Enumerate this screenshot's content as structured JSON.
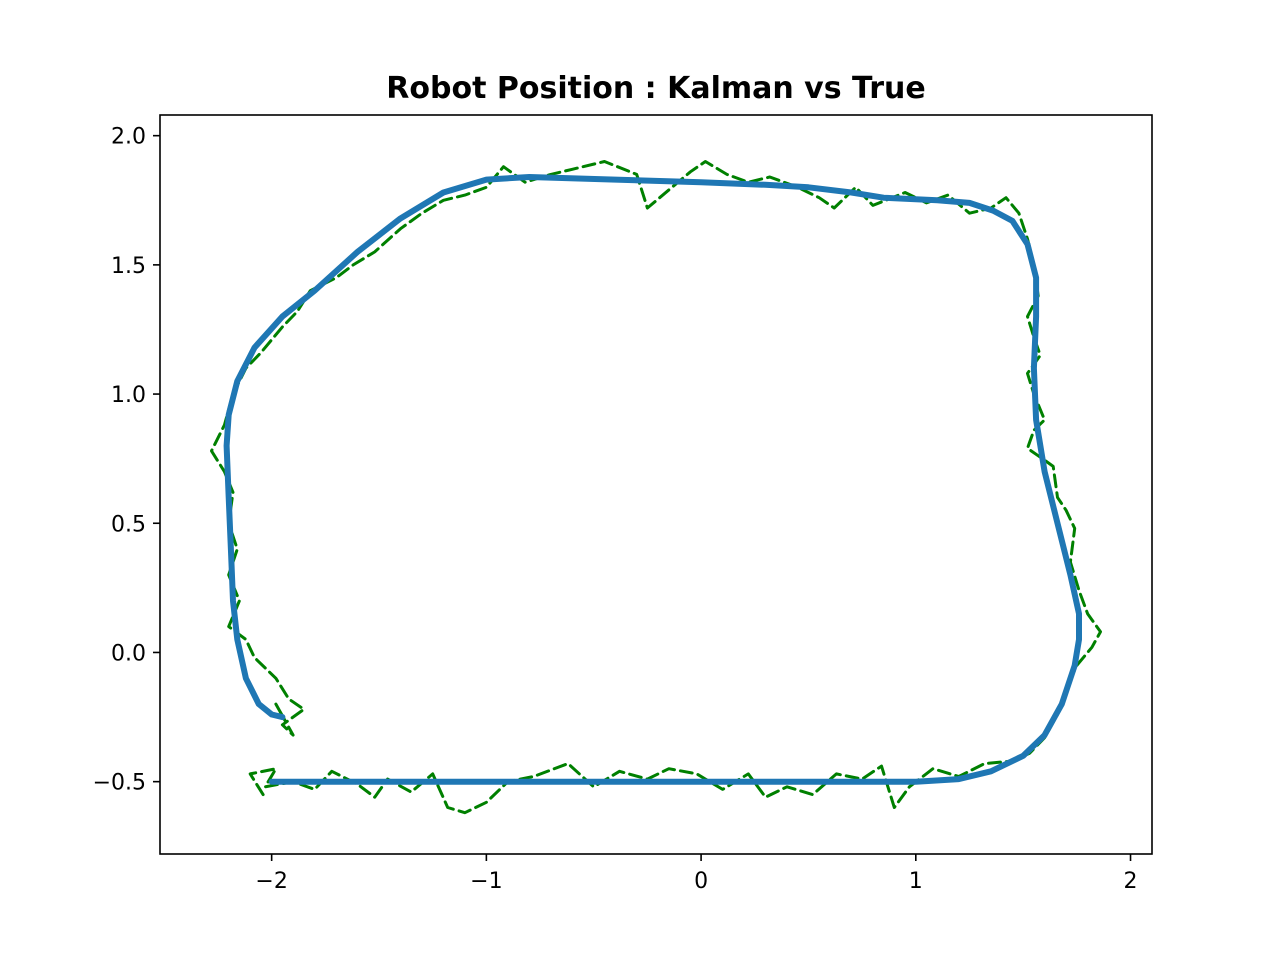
{
  "chart_data": {
    "type": "line",
    "title": "Robot Position : Kalman vs True",
    "xlabel": "",
    "ylabel": "",
    "xlim": [
      -2.52,
      2.1
    ],
    "ylim": [
      -0.78,
      2.08
    ],
    "xticks": [
      -2,
      -1,
      0,
      1,
      2
    ],
    "xtick_labels": [
      "−2",
      "−1",
      "0",
      "1",
      "2"
    ],
    "yticks": [
      -0.5,
      0.0,
      0.5,
      1.0,
      1.5,
      2.0
    ],
    "ytick_labels": [
      "−0.5",
      "0.0",
      "0.5",
      "1.0",
      "1.5",
      "2.0"
    ],
    "grid": false,
    "legend": "none",
    "series": [
      {
        "color": "#1f77b4",
        "style": "solid",
        "points": [
          [
            -2.0,
            -0.5
          ],
          [
            -1.5,
            -0.5
          ],
          [
            -1.0,
            -0.5
          ],
          [
            -0.5,
            -0.5
          ],
          [
            0.0,
            -0.5
          ],
          [
            0.5,
            -0.5
          ],
          [
            1.0,
            -0.5
          ],
          [
            1.2,
            -0.49
          ],
          [
            1.35,
            -0.46
          ],
          [
            1.5,
            -0.4
          ],
          [
            1.6,
            -0.32
          ],
          [
            1.68,
            -0.2
          ],
          [
            1.74,
            -0.05
          ],
          [
            1.76,
            0.05
          ],
          [
            1.76,
            0.15
          ],
          [
            1.72,
            0.3
          ],
          [
            1.66,
            0.5
          ],
          [
            1.6,
            0.7
          ],
          [
            1.56,
            0.9
          ],
          [
            1.55,
            1.1
          ],
          [
            1.56,
            1.3
          ],
          [
            1.56,
            1.45
          ],
          [
            1.52,
            1.58
          ],
          [
            1.45,
            1.67
          ],
          [
            1.36,
            1.71
          ],
          [
            1.25,
            1.74
          ],
          [
            1.1,
            1.75
          ],
          [
            0.85,
            1.76
          ],
          [
            0.7,
            1.78
          ],
          [
            0.5,
            1.8
          ],
          [
            0.3,
            1.81
          ],
          [
            0.0,
            1.82
          ],
          [
            -0.4,
            1.83
          ],
          [
            -0.8,
            1.84
          ],
          [
            -1.0,
            1.83
          ],
          [
            -1.2,
            1.78
          ],
          [
            -1.4,
            1.68
          ],
          [
            -1.6,
            1.55
          ],
          [
            -1.8,
            1.4
          ],
          [
            -1.95,
            1.3
          ],
          [
            -2.08,
            1.18
          ],
          [
            -2.16,
            1.05
          ],
          [
            -2.2,
            0.92
          ],
          [
            -2.21,
            0.8
          ],
          [
            -2.2,
            0.6
          ],
          [
            -2.19,
            0.4
          ],
          [
            -2.18,
            0.2
          ],
          [
            -2.16,
            0.05
          ],
          [
            -2.12,
            -0.1
          ],
          [
            -2.06,
            -0.2
          ],
          [
            -2.0,
            -0.24
          ],
          [
            -1.95,
            -0.25
          ]
        ]
      },
      {
        "color": "#008000",
        "style": "dashed",
        "points": [
          [
            -2.04,
            -0.55
          ],
          [
            -2.1,
            -0.47
          ],
          [
            -1.98,
            -0.45
          ],
          [
            -2.03,
            -0.52
          ],
          [
            -1.9,
            -0.5
          ],
          [
            -1.8,
            -0.53
          ],
          [
            -1.72,
            -0.46
          ],
          [
            -1.6,
            -0.51
          ],
          [
            -1.52,
            -0.56
          ],
          [
            -1.46,
            -0.49
          ],
          [
            -1.35,
            -0.54
          ],
          [
            -1.25,
            -0.47
          ],
          [
            -1.18,
            -0.6
          ],
          [
            -1.1,
            -0.62
          ],
          [
            -1.0,
            -0.58
          ],
          [
            -0.9,
            -0.5
          ],
          [
            -0.78,
            -0.48
          ],
          [
            -0.62,
            -0.43
          ],
          [
            -0.5,
            -0.52
          ],
          [
            -0.38,
            -0.46
          ],
          [
            -0.25,
            -0.49
          ],
          [
            -0.15,
            -0.45
          ],
          [
            -0.02,
            -0.47
          ],
          [
            0.1,
            -0.53
          ],
          [
            0.22,
            -0.47
          ],
          [
            0.3,
            -0.56
          ],
          [
            0.4,
            -0.52
          ],
          [
            0.52,
            -0.55
          ],
          [
            0.63,
            -0.47
          ],
          [
            0.75,
            -0.49
          ],
          [
            0.84,
            -0.44
          ],
          [
            0.9,
            -0.6
          ],
          [
            0.97,
            -0.52
          ],
          [
            1.08,
            -0.45
          ],
          [
            1.2,
            -0.48
          ],
          [
            1.32,
            -0.43
          ],
          [
            1.45,
            -0.42
          ],
          [
            1.53,
            -0.39
          ],
          [
            1.6,
            -0.33
          ],
          [
            1.66,
            -0.24
          ],
          [
            1.7,
            -0.14
          ],
          [
            1.75,
            -0.05
          ],
          [
            1.82,
            0.02
          ],
          [
            1.86,
            0.08
          ],
          [
            1.8,
            0.15
          ],
          [
            1.76,
            0.24
          ],
          [
            1.72,
            0.35
          ],
          [
            1.74,
            0.48
          ],
          [
            1.7,
            0.55
          ],
          [
            1.66,
            0.6
          ],
          [
            1.64,
            0.72
          ],
          [
            1.59,
            0.75
          ],
          [
            1.52,
            0.79
          ],
          [
            1.55,
            0.86
          ],
          [
            1.6,
            0.9
          ],
          [
            1.55,
            1.0
          ],
          [
            1.52,
            1.08
          ],
          [
            1.58,
            1.15
          ],
          [
            1.55,
            1.22
          ],
          [
            1.52,
            1.3
          ],
          [
            1.57,
            1.38
          ],
          [
            1.55,
            1.5
          ],
          [
            1.52,
            1.6
          ],
          [
            1.48,
            1.7
          ],
          [
            1.42,
            1.76
          ],
          [
            1.35,
            1.72
          ],
          [
            1.25,
            1.7
          ],
          [
            1.15,
            1.77
          ],
          [
            1.05,
            1.74
          ],
          [
            0.95,
            1.78
          ],
          [
            0.8,
            1.73
          ],
          [
            0.72,
            1.8
          ],
          [
            0.62,
            1.72
          ],
          [
            0.55,
            1.76
          ],
          [
            0.45,
            1.8
          ],
          [
            0.32,
            1.84
          ],
          [
            0.22,
            1.82
          ],
          [
            0.12,
            1.85
          ],
          [
            0.02,
            1.9
          ],
          [
            -0.05,
            1.86
          ],
          [
            -0.15,
            1.79
          ],
          [
            -0.25,
            1.72
          ],
          [
            -0.3,
            1.85
          ],
          [
            -0.45,
            1.9
          ],
          [
            -0.6,
            1.87
          ],
          [
            -0.7,
            1.85
          ],
          [
            -0.82,
            1.82
          ],
          [
            -0.92,
            1.88
          ],
          [
            -1.0,
            1.8
          ],
          [
            -1.1,
            1.77
          ],
          [
            -1.2,
            1.75
          ],
          [
            -1.3,
            1.7
          ],
          [
            -1.4,
            1.64
          ],
          [
            -1.52,
            1.55
          ],
          [
            -1.62,
            1.5
          ],
          [
            -1.7,
            1.45
          ],
          [
            -1.82,
            1.4
          ],
          [
            -1.88,
            1.32
          ],
          [
            -1.95,
            1.26
          ],
          [
            -2.05,
            1.16
          ],
          [
            -2.12,
            1.1
          ],
          [
            -2.18,
            1.0
          ],
          [
            -2.22,
            0.88
          ],
          [
            -2.28,
            0.78
          ],
          [
            -2.22,
            0.7
          ],
          [
            -2.18,
            0.62
          ],
          [
            -2.2,
            0.5
          ],
          [
            -2.16,
            0.4
          ],
          [
            -2.2,
            0.3
          ],
          [
            -2.15,
            0.2
          ],
          [
            -2.2,
            0.1
          ],
          [
            -2.12,
            0.05
          ],
          [
            -2.08,
            -0.02
          ],
          [
            -1.98,
            -0.1
          ],
          [
            -1.92,
            -0.18
          ],
          [
            -1.85,
            -0.22
          ],
          [
            -1.95,
            -0.28
          ],
          [
            -1.9,
            -0.32
          ],
          [
            -1.98,
            -0.2
          ],
          [
            -1.94,
            -0.26
          ]
        ]
      }
    ]
  }
}
